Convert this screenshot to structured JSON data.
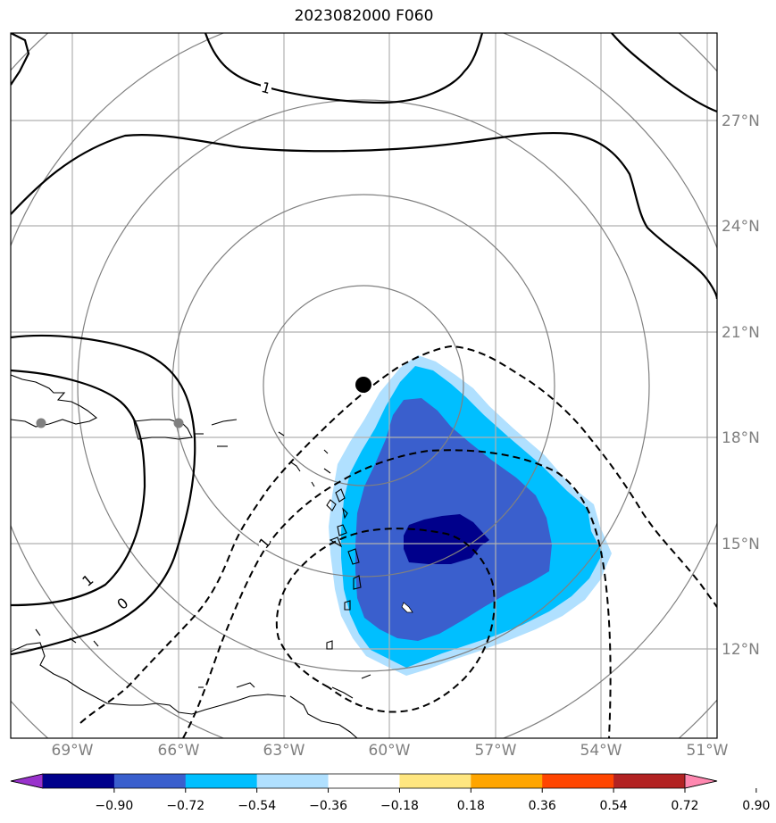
{
  "title": "2023082000 F060",
  "lat_labels": [
    "27°N",
    "24°N",
    "21°N",
    "18°N",
    "15°N",
    "12°N"
  ],
  "lon_labels": [
    "69°W",
    "66°W",
    "63°W",
    "60°W",
    "57°W",
    "54°W",
    "51°W"
  ],
  "contour_labels": [
    "1",
    "1",
    "0",
    "1"
  ],
  "colorbar": {
    "ticks": [
      "−0.90",
      "−0.72",
      "−0.54",
      "−0.36",
      "−0.18",
      "0.18",
      "0.36",
      "0.54",
      "0.72",
      "0.90"
    ],
    "colors": [
      "#9932cc",
      "#00008b",
      "#3a5fcd",
      "#00bfff",
      "#b0e0ff",
      "#ffffff",
      "#ffe680",
      "#ffa500",
      "#ff4500",
      "#b22222",
      "#ff88b0"
    ]
  },
  "storm_center": {
    "lon": -60.7,
    "lat": 19.5
  },
  "reference_points": [
    {
      "lon": -70.9,
      "lat": 18.5
    },
    {
      "lon": -66.0,
      "lat": 18.5
    }
  ]
}
